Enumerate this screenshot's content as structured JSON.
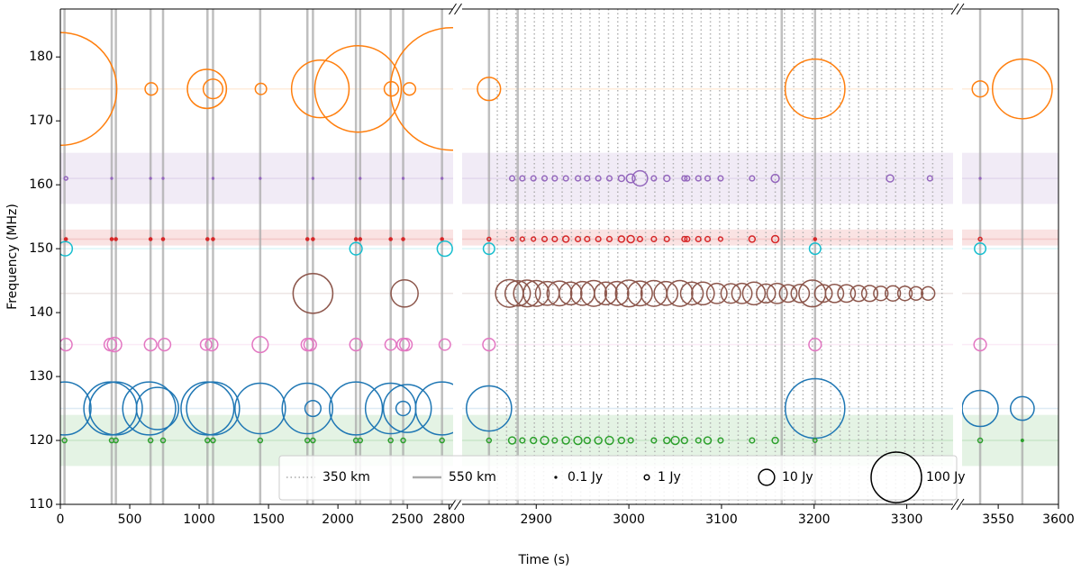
{
  "chart_data": {
    "type": "scatter",
    "xlabel": "Time (s)",
    "ylabel": "Frequency (MHz)",
    "ylim": [
      110,
      187.5
    ],
    "yticks": [
      110,
      120,
      130,
      140,
      150,
      160,
      170,
      180
    ],
    "panels": [
      {
        "xlim": [
          0,
          2830
        ],
        "xticks": [
          0,
          500,
          1000,
          1500,
          2000,
          2500,
          2800
        ]
      },
      {
        "xlim": [
          2820,
          3350
        ],
        "xticks": [
          2900,
          3000,
          3100,
          3200,
          3300
        ]
      },
      {
        "xlim": [
          3520,
          3600
        ],
        "xticks": [
          3550,
          3600
        ]
      }
    ],
    "bands": [
      {
        "range": [
          157,
          165
        ],
        "color": "#9467bd"
      },
      {
        "range": [
          150.5,
          153
        ],
        "color": "#d62728"
      },
      {
        "range": [
          116,
          124
        ],
        "color": "#2ca02c"
      }
    ],
    "lines": [
      {
        "name": "350 km",
        "style": "dotted",
        "color": "#aaaaaa",
        "x": [
          2858,
          2868,
          2878,
          2888,
          2898,
          2908,
          2918,
          2928,
          2938,
          2948,
          2958,
          2968,
          2978,
          2988,
          2998,
          3008,
          3018,
          3028,
          3038,
          3048,
          3058,
          3068,
          3078,
          3088,
          3098,
          3108,
          3118,
          3128,
          3138,
          3148,
          3158,
          3168,
          3178,
          3188,
          3198,
          3208,
          3218,
          3228,
          3238,
          3248,
          3258,
          3268,
          3278,
          3288,
          3298,
          3308,
          3318,
          3328,
          3338
        ]
      },
      {
        "name": "550 km",
        "style": "solid",
        "color": "#aaaaaa",
        "x": [
          30,
          370,
          400,
          650,
          740,
          1060,
          1100,
          1440,
          1780,
          1820,
          2130,
          2160,
          2380,
          2470,
          2750,
          2849,
          2880,
          3165,
          3201,
          3535,
          3570
        ]
      }
    ],
    "series": [
      {
        "color": "#ff7f0e",
        "frequency": 175,
        "x": [
          0,
          655,
          1056,
          1100,
          1445,
          1873,
          2145,
          2385,
          2515,
          2819,
          2849,
          3201,
          3535,
          3570
        ],
        "sizes": [
          500,
          6,
          60,
          15,
          5,
          130,
          294,
          8,
          6,
          590,
          21,
          140,
          10,
          140
        ]
      },
      {
        "color": "#9467bd",
        "frequency": 161,
        "x": [
          40,
          370,
          650,
          740,
          1100,
          1440,
          1820,
          2160,
          2470,
          2750,
          2874,
          2885,
          2897,
          2909,
          2920,
          2932,
          2945,
          2955,
          2967,
          2979,
          2992,
          3002,
          3012,
          3027,
          3041,
          3060,
          3063,
          3075,
          3085,
          3099,
          3133,
          3158,
          3282,
          3325,
          3535
        ],
        "sizes": [
          0.5,
          0.1,
          0.1,
          0.1,
          0.1,
          0.1,
          0.1,
          0.1,
          0.1,
          0.1,
          1,
          1,
          1,
          1,
          1,
          1,
          1,
          1,
          1,
          1,
          1.5,
          3,
          9,
          1,
          1.5,
          1,
          1,
          1,
          1,
          1,
          1,
          2.5,
          2,
          1,
          0.1
        ]
      },
      {
        "color": "#d62728",
        "frequency": 151.5,
        "x": [
          40,
          370,
          400,
          650,
          740,
          1060,
          1100,
          1780,
          1820,
          2130,
          2160,
          2380,
          2470,
          2750,
          2849,
          2874,
          2885,
          2897,
          2909,
          2920,
          2932,
          2945,
          2955,
          2967,
          2979,
          2992,
          3002,
          3012,
          3027,
          3041,
          3060,
          3063,
          3075,
          3085,
          3099,
          3133,
          3158,
          3201,
          3535
        ],
        "sizes": [
          0.3,
          0.3,
          0.3,
          0.3,
          0.3,
          0.3,
          0.3,
          0.3,
          0.3,
          0.3,
          0.3,
          0.3,
          0.3,
          0.3,
          0.5,
          0.5,
          0.7,
          0.7,
          1,
          1,
          1.5,
          1,
          1,
          1,
          1,
          1.5,
          2,
          1,
          1,
          1,
          1,
          1,
          1,
          1,
          0.7,
          1.5,
          2,
          0.3,
          0.5
        ]
      },
      {
        "color": "#17becf",
        "frequency": 150,
        "x": [
          35,
          2130,
          2770,
          2849,
          3201,
          3535
        ],
        "sizes": [
          8,
          6,
          9,
          5,
          5,
          5
        ]
      },
      {
        "color": "#8c564b",
        "frequency": 143,
        "x": [
          1820,
          2480,
          2871,
          2880,
          2890,
          2900,
          2912,
          2925,
          2937,
          2950,
          2962,
          2975,
          2987,
          3000,
          3012,
          3027,
          3040,
          3055,
          3068,
          3080,
          3095,
          3110,
          3122,
          3135,
          3148,
          3160,
          3172,
          3185,
          3198,
          3210,
          3222,
          3235,
          3248,
          3260,
          3272,
          3285,
          3298,
          3310,
          3323
        ],
        "sizes": [
          62,
          29,
          30,
          25,
          28,
          26,
          22,
          24,
          20,
          22,
          26,
          20,
          22,
          28,
          24,
          26,
          22,
          26,
          20,
          20,
          16,
          15,
          16,
          20,
          14,
          16,
          12,
          13,
          28,
          12,
          13,
          12,
          10,
          10,
          8,
          9,
          8,
          7,
          7
        ]
      },
      {
        "color": "#e377c2",
        "frequency": 135,
        "x": [
          40,
          360,
          390,
          650,
          750,
          1050,
          1090,
          1440,
          1780,
          1800,
          2130,
          2380,
          2470,
          2490,
          2770,
          2849,
          3201,
          3535
        ],
        "sizes": [
          6,
          6,
          8,
          6,
          6,
          5,
          6,
          10,
          6,
          6,
          6,
          5,
          6,
          6,
          5,
          6,
          6,
          6
        ]
      },
      {
        "color": "#1f77b4",
        "frequency": 125,
        "x": [
          30,
          360,
          400,
          640,
          700,
          1060,
          1100,
          1440,
          1780,
          1820,
          2130,
          2380,
          2470,
          2500,
          2750,
          2849,
          3201,
          3535,
          3570
        ],
        "sizes": [
          110,
          110,
          110,
          110,
          70,
          110,
          110,
          100,
          100,
          10,
          110,
          100,
          8,
          90,
          110,
          80,
          139,
          51,
          22
        ]
      },
      {
        "color": "#2ca02c",
        "frequency": 120,
        "x": [
          30,
          370,
          400,
          650,
          740,
          1060,
          1100,
          1440,
          1780,
          1820,
          2130,
          2160,
          2380,
          2470,
          2750,
          2849,
          2874,
          2885,
          2897,
          2909,
          2920,
          2932,
          2945,
          2955,
          2967,
          2979,
          2992,
          3002,
          3027,
          3041,
          3050,
          3060,
          3075,
          3085,
          3099,
          3133,
          3158,
          3201,
          3535,
          3570
        ],
        "sizes": [
          0.8,
          0.8,
          0.8,
          0.8,
          0.8,
          0.8,
          0.8,
          0.8,
          0.8,
          0.8,
          0.8,
          0.8,
          0.8,
          0.8,
          0.8,
          0.8,
          2,
          1,
          1.5,
          2.5,
          1,
          2,
          2.5,
          1.5,
          2,
          2.5,
          1.5,
          1,
          1,
          1.5,
          2.5,
          1.5,
          1,
          2,
          1,
          1,
          1.5,
          0.6,
          0.8,
          0.2
        ]
      }
    ],
    "size_legend": [
      {
        "value": 0.1,
        "label": "0.1 Jy"
      },
      {
        "value": 1,
        "label": "1 Jy"
      },
      {
        "value": 10,
        "label": "10 Jy"
      },
      {
        "value": 100,
        "label": "100 Jy"
      }
    ]
  }
}
